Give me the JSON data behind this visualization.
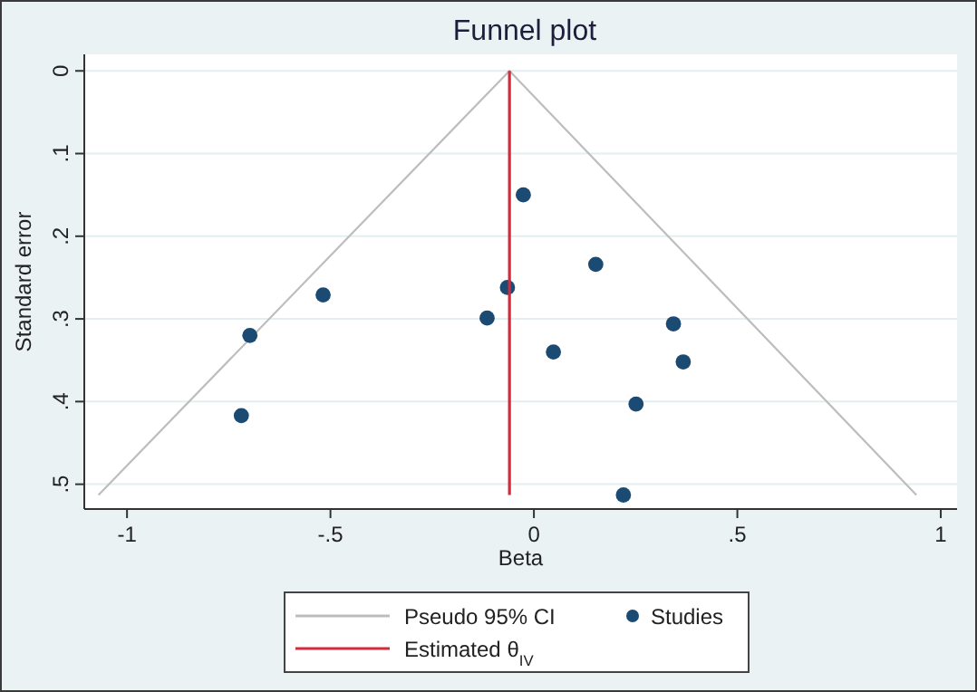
{
  "chart_data": {
    "type": "scatter",
    "title": "Funnel plot",
    "xlabel": "Beta",
    "ylabel": "Standard error",
    "xlim": [
      -1.105,
      1.04
    ],
    "ylim": [
      0.53,
      -0.02
    ],
    "xticks": [
      {
        "value": -1,
        "label": "-1"
      },
      {
        "value": -0.5,
        "label": "-.5"
      },
      0,
      {
        "value": 0.5,
        "label": ".5"
      },
      1
    ],
    "yticks": [
      0,
      {
        "value": 0.1,
        "label": ".1"
      },
      {
        "value": 0.2,
        "label": ".2"
      },
      {
        "value": 0.3,
        "label": ".3"
      },
      {
        "value": 0.4,
        "label": ".4"
      },
      {
        "value": 0.5,
        "label": ".5"
      }
    ],
    "grid": "y",
    "legend": "bottom",
    "series": [
      {
        "name": "Pseudo 95% CI",
        "type": "line",
        "color": "#bdbdbd",
        "marker": "none",
        "x": [
          -1.07,
          -0.06,
          0.94
        ],
        "values": [
          0.513,
          0,
          0.513
        ]
      },
      {
        "name": "Studies",
        "color": "#1b4a72",
        "marker": "circle",
        "x": [
          -0.026,
          0.152,
          -0.065,
          -0.518,
          -0.115,
          0.343,
          -0.698,
          0.048,
          0.367,
          0.251,
          -0.719,
          0.22
        ],
        "values": [
          0.15,
          0.234,
          0.262,
          0.271,
          0.299,
          0.306,
          0.32,
          0.34,
          0.352,
          0.403,
          0.417,
          0.513
        ]
      },
      {
        "name": "Estimated θ$_{IV}$",
        "type": "line",
        "color": "#d42a3c",
        "marker": "none",
        "x": [
          -0.06,
          -0.06
        ],
        "values": [
          0,
          0.513
        ]
      }
    ]
  }
}
